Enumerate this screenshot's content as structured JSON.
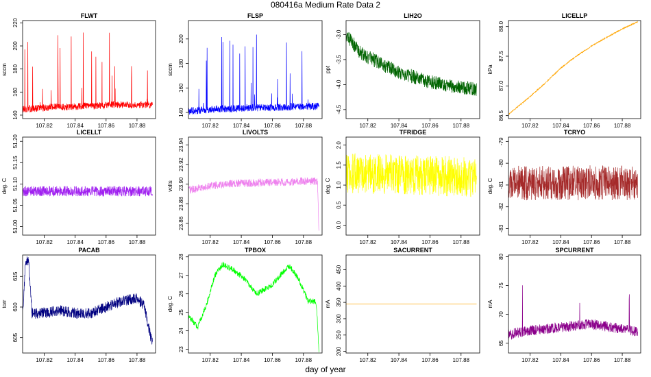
{
  "title": "080416a   Medium Rate Data 2",
  "xlabel": "day of year",
  "chart_data": [
    {
      "type": "line",
      "title": "FLWT",
      "ylabel": "sccm",
      "color": "#ff0000",
      "x_ticks": [
        "107.82",
        "107.84",
        "107.86",
        "107.88"
      ],
      "y_ticks": [
        "140",
        "160",
        "180",
        "200",
        "220"
      ],
      "xlim": [
        107.806,
        107.892
      ],
      "ylim": [
        137,
        222
      ],
      "series": [
        {
          "name": "FLWT",
          "x": [
            107.806,
            107.815,
            107.825,
            107.835,
            107.845,
            107.855,
            107.865,
            107.875,
            107.885,
            107.89
          ],
          "y": [
            145,
            146,
            147,
            147,
            148,
            148,
            149,
            149,
            149,
            149
          ],
          "noise": 3,
          "spikes": 30,
          "spike_max": 212
        }
      ]
    },
    {
      "type": "line",
      "title": "FLSP",
      "ylabel": "sccm",
      "color": "#0000ff",
      "x_ticks": [
        "107.82",
        "107.84",
        "107.86",
        "107.88"
      ],
      "y_ticks": [
        "140",
        "160",
        "180",
        "200"
      ],
      "xlim": [
        107.806,
        107.892
      ],
      "ylim": [
        135,
        215
      ],
      "series": [
        {
          "name": "FLSP",
          "x": [
            107.806,
            107.815,
            107.825,
            107.835,
            107.845,
            107.855,
            107.865,
            107.875,
            107.885,
            107.89
          ],
          "y": [
            141,
            142,
            143,
            143,
            144,
            144,
            144,
            145,
            145,
            145
          ],
          "noise": 3,
          "spikes": 24,
          "spike_max": 205
        }
      ]
    },
    {
      "type": "line",
      "title": "LIH2O",
      "ylabel": "ppt",
      "color": "#006400",
      "x_ticks": [
        "107.82",
        "107.84",
        "107.86",
        "107.88"
      ],
      "y_ticks": [
        "-3.0",
        "-3.5",
        "-4.0",
        "-4.5"
      ],
      "xlim": [
        107.806,
        107.892
      ],
      "ylim": [
        -4.68,
        -2.72
      ],
      "series": [
        {
          "name": "LIH2O",
          "x": [
            107.806,
            107.81,
            107.815,
            107.82,
            107.83,
            107.84,
            107.85,
            107.86,
            107.87,
            107.88,
            107.89
          ],
          "y": [
            -3.0,
            -3.15,
            -3.35,
            -3.45,
            -3.6,
            -3.75,
            -3.85,
            -3.95,
            -4.0,
            -4.05,
            -4.1
          ],
          "noise": 0.14,
          "spikes": 0,
          "spike_max": null
        }
      ]
    },
    {
      "type": "line",
      "title": "LICELLP",
      "ylabel": "kPa",
      "color": "#ffa500",
      "x_ticks": [
        "107.82",
        "107.84",
        "107.86",
        "107.88"
      ],
      "y_ticks": [
        "86.5",
        "87.0",
        "87.5",
        "88.0"
      ],
      "xlim": [
        107.806,
        107.892
      ],
      "ylim": [
        86.45,
        88.1
      ],
      "series": [
        {
          "name": "LICELLP",
          "x": [
            107.806,
            107.82,
            107.83,
            107.84,
            107.85,
            107.86,
            107.87,
            107.88,
            107.89
          ],
          "y": [
            86.52,
            86.82,
            87.05,
            87.3,
            87.5,
            87.67,
            87.82,
            87.96,
            88.08
          ],
          "noise": 0.01,
          "spikes": 0,
          "spike_max": null
        }
      ]
    },
    {
      "type": "line",
      "title": "LICELLT",
      "ylabel": "deg. C",
      "color": "#a020f0",
      "x_ticks": [
        "107.82",
        "107.84",
        "107.86",
        "107.88"
      ],
      "y_ticks": [
        "51.00",
        "51.05",
        "51.10",
        "51.15",
        "51.20"
      ],
      "xlim": [
        107.806,
        107.892
      ],
      "ylim": [
        50.98,
        51.21
      ],
      "series": [
        {
          "name": "LICELLT",
          "x": [
            107.806,
            107.89
          ],
          "y": [
            51.083,
            51.083
          ],
          "noise": 0.012,
          "spikes": 0,
          "spike_max": null
        }
      ]
    },
    {
      "type": "line",
      "title": "LIVOLTS",
      "ylabel": "volts",
      "color": "#ee82ee",
      "x_ticks": [
        "107.82",
        "107.84",
        "107.86",
        "107.88"
      ],
      "y_ticks": [
        "23.86",
        "23.88",
        "23.90",
        "23.92",
        "23.94"
      ],
      "xlim": [
        107.806,
        107.892
      ],
      "ylim": [
        23.848,
        23.948
      ],
      "series": [
        {
          "name": "LIVOLTS",
          "x": [
            107.806,
            107.82,
            107.83,
            107.84,
            107.85,
            107.86,
            107.87,
            107.88,
            107.889,
            107.89
          ],
          "y": [
            23.894,
            23.898,
            23.9,
            23.901,
            23.901,
            23.902,
            23.902,
            23.903,
            23.903,
            23.85
          ],
          "noise": 0.004,
          "spikes": 0,
          "spike_max": null
        }
      ]
    },
    {
      "type": "line",
      "title": "TFRIDGE",
      "ylabel": "deg. C",
      "color": "#ffff00",
      "x_ticks": [
        "107.82",
        "107.84",
        "107.86",
        "107.88"
      ],
      "y_ticks": [
        "0.0",
        "0.5",
        "1.0",
        "1.5",
        "2.0"
      ],
      "xlim": [
        107.806,
        107.892
      ],
      "ylim": [
        -0.25,
        2.2
      ],
      "series": [
        {
          "name": "TFRIDGE",
          "x": [
            107.806,
            107.89
          ],
          "y": [
            1.3,
            1.2
          ],
          "noise": 0.5,
          "spikes": 0,
          "spike_max": null
        }
      ]
    },
    {
      "type": "line",
      "title": "TCRYO",
      "ylabel": "deg. C",
      "color": "#a52a2a",
      "x_ticks": [
        "107.82",
        "107.84",
        "107.86",
        "107.88"
      ],
      "y_ticks": [
        "-79",
        "-80",
        "-81",
        "-82",
        "-83"
      ],
      "xlim": [
        107.806,
        107.892
      ],
      "ylim": [
        -83.3,
        -78.8
      ],
      "series": [
        {
          "name": "TCRYO",
          "x": [
            107.806,
            107.89
          ],
          "y": [
            -80.9,
            -80.9
          ],
          "noise": 0.8,
          "spikes": 0,
          "spike_max": null
        }
      ]
    },
    {
      "type": "line",
      "title": "PACAB",
      "ylabel": "torr",
      "color": "#000080",
      "x_ticks": [
        "107.82",
        "107.84",
        "107.86",
        "107.88"
      ],
      "y_ticks": [
        "605",
        "610",
        "615"
      ],
      "xlim": [
        107.806,
        107.892
      ],
      "ylim": [
        602.5,
        618.5
      ],
      "series": [
        {
          "name": "PACAB",
          "x": [
            107.806,
            107.808,
            107.81,
            107.812,
            107.82,
            107.83,
            107.84,
            107.85,
            107.86,
            107.87,
            107.88,
            107.885,
            107.888,
            107.89
          ],
          "y": [
            609,
            617.5,
            617.5,
            609,
            609,
            609.5,
            609,
            609,
            610,
            611,
            611.5,
            610,
            606,
            604
          ],
          "noise": 0.9,
          "spikes": 0,
          "spike_max": null
        }
      ]
    },
    {
      "type": "line",
      "title": "TPBOX",
      "ylabel": "deg. C",
      "color": "#00ff00",
      "x_ticks": [
        "107.82",
        "107.84",
        "107.86",
        "107.88"
      ],
      "y_ticks": [
        "23",
        "24",
        "25",
        "26",
        "27",
        "28"
      ],
      "xlim": [
        107.806,
        107.892
      ],
      "ylim": [
        22.8,
        28.1
      ],
      "series": [
        {
          "name": "TPBOX",
          "x": [
            107.806,
            107.812,
            107.818,
            107.823,
            107.828,
            107.835,
            107.842,
            107.85,
            107.86,
            107.865,
            107.871,
            107.877,
            107.883,
            107.888,
            107.889,
            107.89
          ],
          "y": [
            24.8,
            24.2,
            25.5,
            27.0,
            27.6,
            27.3,
            26.8,
            26.0,
            26.5,
            27.0,
            27.5,
            26.8,
            25.6,
            25.6,
            24.5,
            22.9
          ],
          "noise": 0.15,
          "spikes": 0,
          "spike_max": null
        }
      ]
    },
    {
      "type": "line",
      "title": "SACURRENT",
      "ylabel": "mA",
      "color": "#ffa500",
      "x_ticks": [
        "107.82",
        "107.84",
        "107.86",
        "107.88"
      ],
      "y_ticks": [
        "200",
        "250",
        "300",
        "350",
        "400",
        "450"
      ],
      "xlim": [
        107.806,
        107.892
      ],
      "ylim": [
        195,
        495
      ],
      "series": [
        {
          "name": "SACURRENT",
          "x": [
            107.806,
            107.89
          ],
          "y": [
            345,
            345
          ],
          "noise": 0,
          "spikes": 0,
          "spike_max": null
        }
      ]
    },
    {
      "type": "line",
      "title": "SPCURRENT",
      "ylabel": "mA",
      "color": "#8b008b",
      "x_ticks": [
        "107.82",
        "107.84",
        "107.86",
        "107.88"
      ],
      "y_ticks": [
        "65",
        "70",
        "75",
        "80"
      ],
      "xlim": [
        107.806,
        107.892
      ],
      "ylim": [
        63.3,
        80.3
      ],
      "series": [
        {
          "name": "SPCURRENT",
          "x": [
            107.806,
            107.82,
            107.84,
            107.86,
            107.88,
            107.89
          ],
          "y": [
            66.5,
            67.2,
            67.8,
            68.3,
            67.5,
            67.0
          ],
          "noise": 0.9,
          "spikes": 8,
          "spike_max": 78
        }
      ]
    }
  ]
}
